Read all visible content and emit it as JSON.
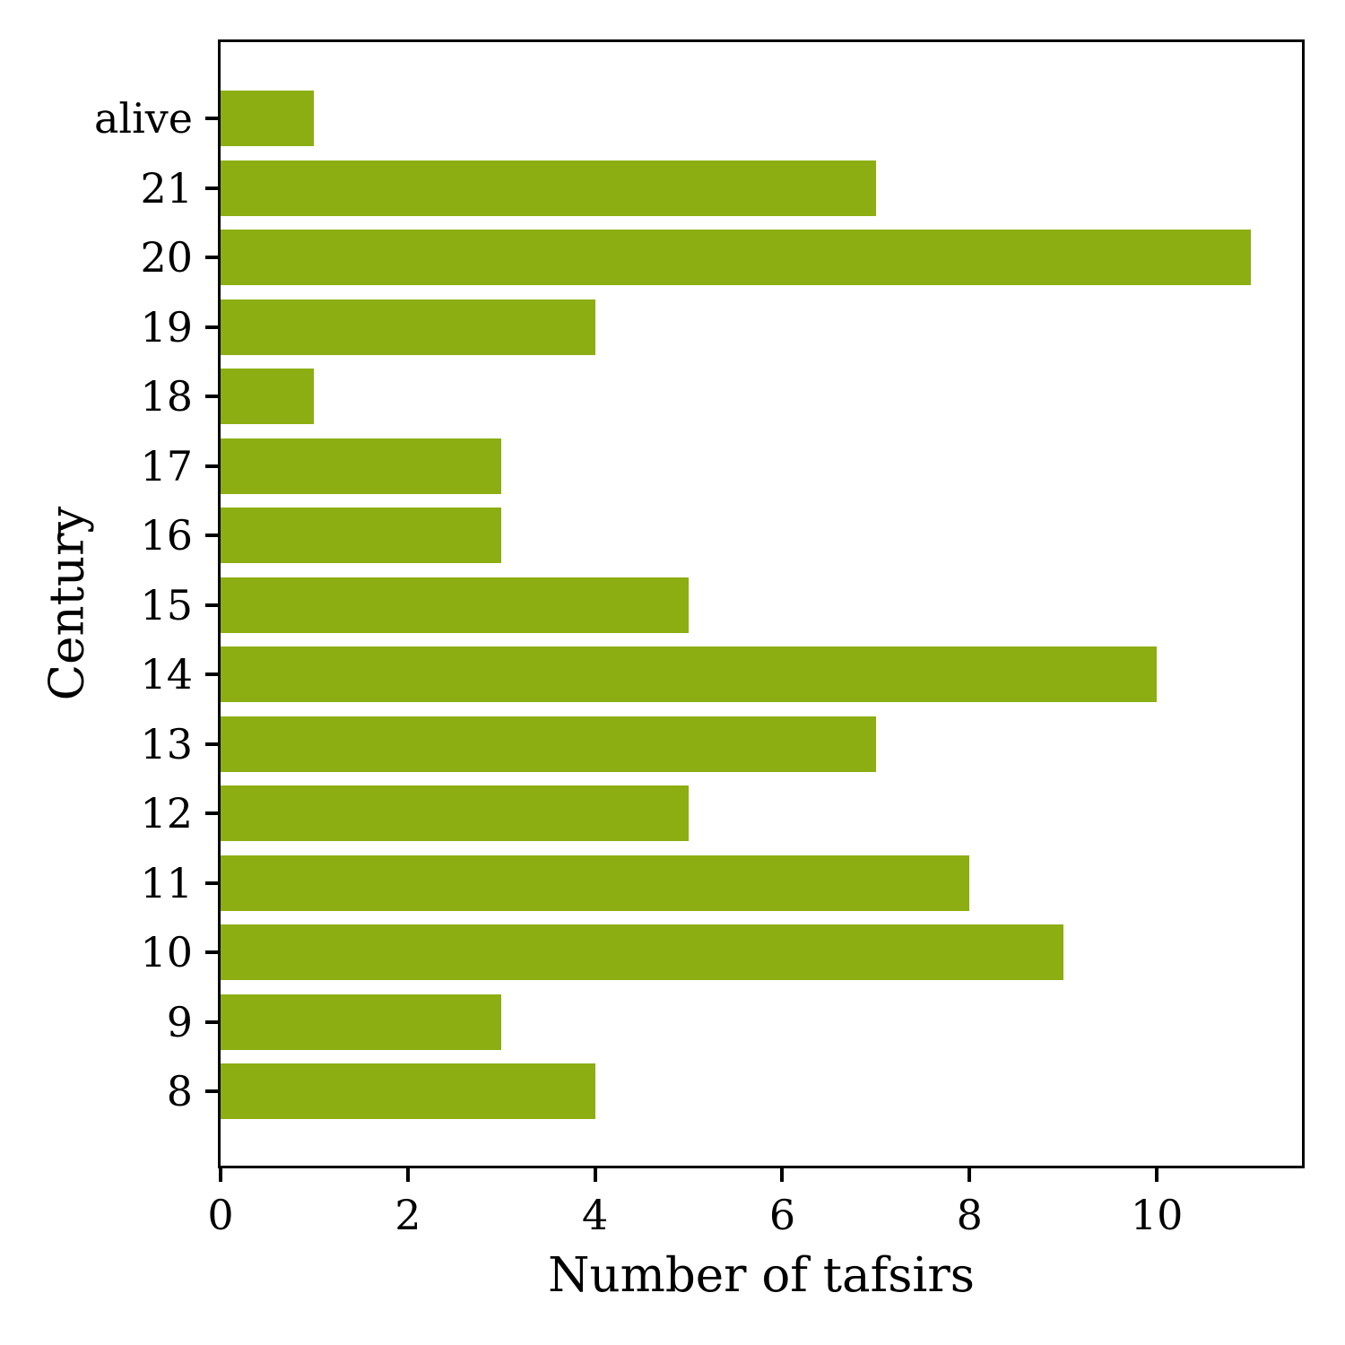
{
  "chart_data": {
    "type": "bar",
    "orientation": "horizontal",
    "title": "",
    "xlabel": "Number of tafsirs",
    "ylabel": "Century",
    "categories": [
      "alive",
      "21",
      "20",
      "19",
      "18",
      "17",
      "16",
      "15",
      "14",
      "13",
      "12",
      "11",
      "10",
      "9",
      "8"
    ],
    "values": [
      1,
      7,
      11,
      4,
      1,
      3,
      3,
      5,
      10,
      7,
      5,
      8,
      9,
      3,
      4
    ],
    "x_ticks": [
      0,
      2,
      4,
      6,
      8,
      10
    ],
    "xlim": [
      0,
      11.55
    ],
    "grid": false,
    "legend": null,
    "bar_color": "#8cae12",
    "axis_color": "#000000",
    "background_color": "#ffffff"
  }
}
